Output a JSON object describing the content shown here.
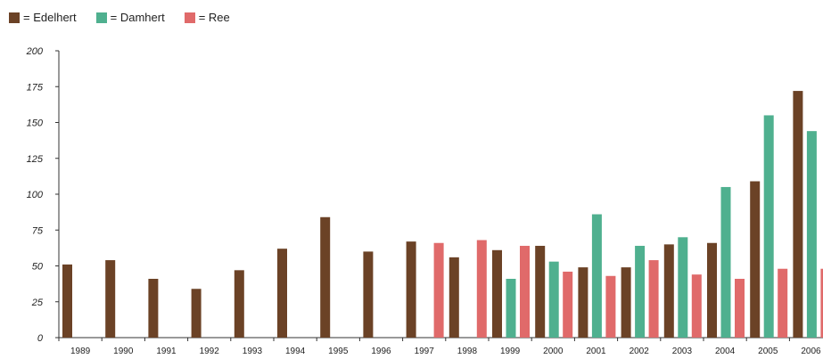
{
  "legend": [
    {
      "label": "= Edelhert",
      "color": "#6b4226"
    },
    {
      "label": "= Damhert",
      "color": "#4fb08f"
    },
    {
      "label": "= Ree",
      "color": "#e06a6a"
    }
  ],
  "chart_data": {
    "type": "bar",
    "categories": [
      "1989",
      "1990",
      "1991",
      "1992",
      "1993",
      "1994",
      "1995",
      "1996",
      "1997",
      "1998",
      "1999",
      "2000",
      "2001",
      "2002",
      "2003",
      "2004",
      "2005",
      "2006"
    ],
    "series": [
      {
        "name": "Edelhert",
        "color": "#6b4226",
        "values": [
          51,
          54,
          41,
          34,
          47,
          62,
          84,
          60,
          67,
          56,
          61,
          64,
          49,
          49,
          65,
          66,
          109,
          172
        ]
      },
      {
        "name": "Damhert",
        "color": "#4fb08f",
        "values": [
          null,
          null,
          null,
          null,
          null,
          null,
          null,
          null,
          null,
          null,
          41,
          53,
          86,
          64,
          70,
          105,
          155,
          144
        ]
      },
      {
        "name": "Ree",
        "color": "#e06a6a",
        "values": [
          null,
          null,
          null,
          null,
          null,
          null,
          null,
          null,
          66,
          68,
          64,
          46,
          43,
          54,
          44,
          41,
          48,
          48
        ]
      }
    ],
    "ylim": [
      0,
      200
    ],
    "yticks": [
      0,
      25,
      50,
      75,
      100,
      125,
      150,
      175,
      200
    ],
    "title": "",
    "xlabel": "",
    "ylabel": "",
    "legend_position": "top-left",
    "grid": false
  }
}
